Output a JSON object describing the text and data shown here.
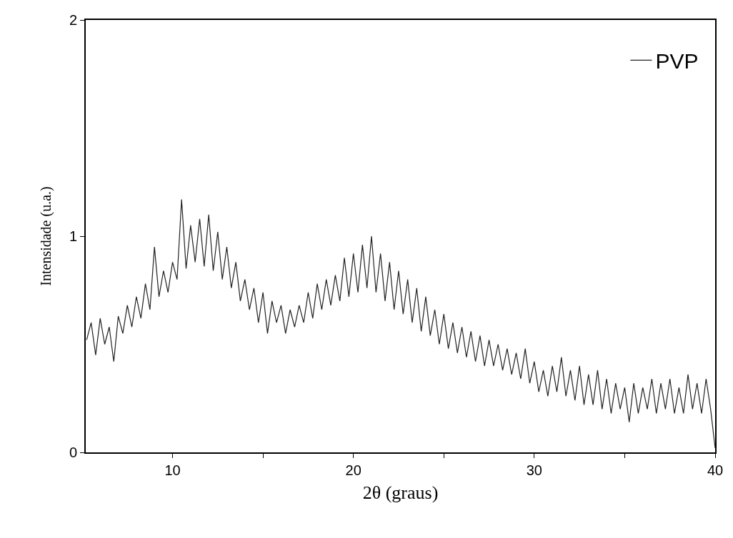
{
  "chart_data": {
    "type": "line",
    "xlabel": "2θ (graus)",
    "ylabel": "Intensidade (u.a.)",
    "xlim": [
      5.2,
      40
    ],
    "xticks": [
      10,
      {
        "value": 15,
        "label": null
      },
      20,
      {
        "value": 25,
        "label": null
      },
      30,
      {
        "value": 35,
        "label": null
      },
      40
    ],
    "ylim": [
      0,
      2
    ],
    "yticks": [
      0,
      1,
      2
    ],
    "grid": false,
    "legend": "top right",
    "marker": "none",
    "line_style": "solid",
    "series": [
      {
        "name": "PVP",
        "color": "#222222",
        "x": [
          5.25,
          5.5,
          5.75,
          6.0,
          6.25,
          6.5,
          6.75,
          7.0,
          7.25,
          7.5,
          7.75,
          8.0,
          8.25,
          8.5,
          8.75,
          9.0,
          9.25,
          9.5,
          9.75,
          10.0,
          10.25,
          10.5,
          10.75,
          11.0,
          11.25,
          11.5,
          11.75,
          12.0,
          12.25,
          12.5,
          12.75,
          13.0,
          13.25,
          13.5,
          13.75,
          14.0,
          14.25,
          14.5,
          14.75,
          15.0,
          15.25,
          15.5,
          15.75,
          16.0,
          16.25,
          16.5,
          16.75,
          17.0,
          17.25,
          17.5,
          17.75,
          18.0,
          18.25,
          18.5,
          18.75,
          19.0,
          19.25,
          19.5,
          19.75,
          20.0,
          20.25,
          20.5,
          20.75,
          21.0,
          21.25,
          21.5,
          21.75,
          22.0,
          22.25,
          22.5,
          22.75,
          23.0,
          23.25,
          23.5,
          23.75,
          24.0,
          24.25,
          24.5,
          24.75,
          25.0,
          25.25,
          25.5,
          25.75,
          26.0,
          26.25,
          26.5,
          26.75,
          27.0,
          27.25,
          27.5,
          27.75,
          28.0,
          28.25,
          28.5,
          28.75,
          29.0,
          29.25,
          29.5,
          29.75,
          30.0,
          30.25,
          30.5,
          30.75,
          31.0,
          31.25,
          31.5,
          31.75,
          32.0,
          32.25,
          32.5,
          32.75,
          33.0,
          33.25,
          33.5,
          33.75,
          34.0,
          34.25,
          34.5,
          34.75,
          35.0,
          35.25,
          35.5,
          35.75,
          36.0,
          36.25,
          36.5,
          36.75,
          37.0,
          37.25,
          37.5,
          37.75,
          38.0,
          38.25,
          38.5,
          38.75,
          39.0,
          39.25,
          39.5,
          39.75,
          40.0
        ],
        "values": [
          0.52,
          0.6,
          0.45,
          0.62,
          0.5,
          0.58,
          0.42,
          0.63,
          0.55,
          0.68,
          0.58,
          0.72,
          0.62,
          0.78,
          0.66,
          0.95,
          0.72,
          0.84,
          0.74,
          0.88,
          0.8,
          1.17,
          0.85,
          1.05,
          0.88,
          1.08,
          0.86,
          1.1,
          0.84,
          1.02,
          0.8,
          0.95,
          0.76,
          0.88,
          0.7,
          0.8,
          0.66,
          0.76,
          0.6,
          0.74,
          0.55,
          0.7,
          0.6,
          0.68,
          0.55,
          0.66,
          0.58,
          0.68,
          0.6,
          0.74,
          0.62,
          0.78,
          0.66,
          0.8,
          0.68,
          0.82,
          0.7,
          0.9,
          0.72,
          0.92,
          0.74,
          0.96,
          0.76,
          1.0,
          0.74,
          0.92,
          0.7,
          0.88,
          0.66,
          0.84,
          0.64,
          0.8,
          0.6,
          0.76,
          0.56,
          0.72,
          0.54,
          0.66,
          0.5,
          0.64,
          0.48,
          0.6,
          0.46,
          0.58,
          0.44,
          0.56,
          0.42,
          0.54,
          0.4,
          0.52,
          0.4,
          0.5,
          0.38,
          0.48,
          0.36,
          0.46,
          0.34,
          0.48,
          0.32,
          0.42,
          0.28,
          0.38,
          0.26,
          0.4,
          0.28,
          0.44,
          0.26,
          0.38,
          0.24,
          0.4,
          0.22,
          0.36,
          0.22,
          0.38,
          0.2,
          0.34,
          0.18,
          0.32,
          0.2,
          0.3,
          0.14,
          0.32,
          0.18,
          0.3,
          0.2,
          0.34,
          0.18,
          0.32,
          0.2,
          0.34,
          0.18,
          0.3,
          0.18,
          0.36,
          0.2,
          0.32,
          0.18,
          0.34,
          0.2,
          0.02
        ]
      }
    ]
  }
}
